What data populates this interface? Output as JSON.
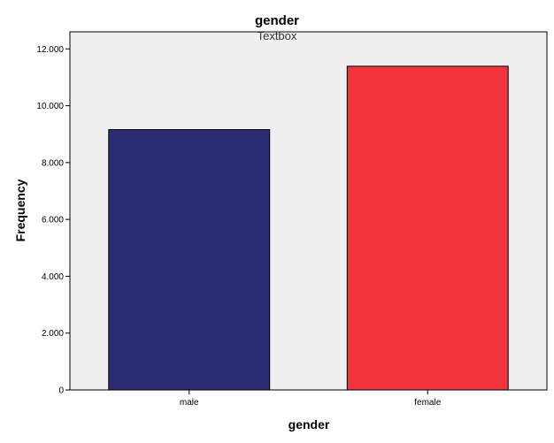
{
  "chart_data": {
    "type": "bar",
    "title": "gender",
    "subtitle": "Textbox",
    "xlabel": "gender",
    "ylabel": "Frequency",
    "categories": [
      "male",
      "female"
    ],
    "values": [
      9160,
      11390
    ],
    "colors": [
      "#2a2c70",
      "#f2333b"
    ],
    "ylim": [
      0,
      12600
    ],
    "yticks": [
      0,
      2000,
      4000,
      6000,
      8000,
      10000,
      12000
    ],
    "ytick_labels": [
      "0",
      "2.000",
      "4.000",
      "6.000",
      "8.000",
      "10.000",
      "12.000"
    ],
    "plot_background": "#f0f0f0",
    "grid": false,
    "legend": "none"
  }
}
